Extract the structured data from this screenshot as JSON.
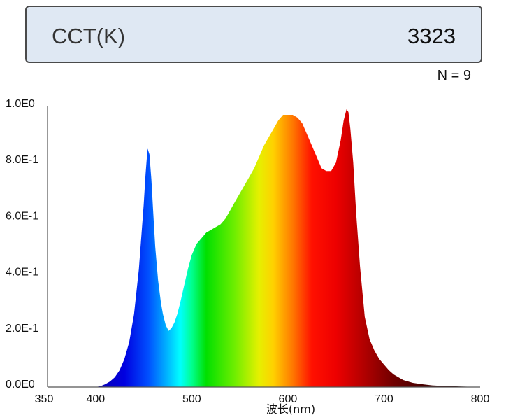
{
  "cct": {
    "label": "CCT(K)",
    "value": "3323"
  },
  "sample_count": "N = 9",
  "chart_data": {
    "type": "area",
    "title": "",
    "xlabel": "波长(nm)",
    "ylabel": "",
    "xlim": [
      350,
      800
    ],
    "ylim": [
      0,
      1
    ],
    "x_ticks": [
      "350",
      "400",
      "500",
      "600",
      "700",
      "800"
    ],
    "y_ticks": [
      "0.0E0",
      "2.0E-1",
      "4.0E-1",
      "6.0E-1",
      "8.0E-1",
      "1.0E0"
    ],
    "fill": "wavelength spectrum colors",
    "series": [
      {
        "x": [
          350,
          400,
          405,
          410,
          415,
          420,
          425,
          430,
          435,
          440,
          445,
          450,
          452,
          454,
          456,
          458,
          460,
          462,
          465,
          468,
          470,
          473,
          476,
          479,
          482,
          485,
          488,
          492,
          496,
          500,
          505,
          510,
          515,
          520,
          525,
          530,
          535,
          540,
          545,
          550,
          555,
          560,
          565,
          570,
          575,
          580,
          585,
          590,
          595,
          600,
          605,
          610,
          615,
          620,
          625,
          630,
          635,
          640,
          645,
          650,
          655,
          658,
          661,
          663,
          665,
          668,
          671,
          675,
          680,
          685,
          690,
          695,
          700,
          705,
          710,
          720,
          730,
          740,
          750,
          760,
          770,
          780,
          790,
          800
        ],
        "y": [
          0,
          0,
          0.003,
          0.01,
          0.02,
          0.035,
          0.06,
          0.1,
          0.16,
          0.26,
          0.42,
          0.65,
          0.76,
          0.85,
          0.83,
          0.74,
          0.62,
          0.5,
          0.38,
          0.3,
          0.26,
          0.22,
          0.2,
          0.21,
          0.23,
          0.26,
          0.3,
          0.36,
          0.42,
          0.47,
          0.51,
          0.53,
          0.55,
          0.56,
          0.57,
          0.58,
          0.6,
          0.63,
          0.66,
          0.69,
          0.72,
          0.75,
          0.78,
          0.82,
          0.86,
          0.89,
          0.92,
          0.95,
          0.97,
          0.97,
          0.97,
          0.96,
          0.94,
          0.9,
          0.86,
          0.82,
          0.78,
          0.77,
          0.77,
          0.8,
          0.88,
          0.95,
          0.99,
          0.98,
          0.92,
          0.8,
          0.62,
          0.43,
          0.25,
          0.17,
          0.13,
          0.1,
          0.08,
          0.06,
          0.045,
          0.025,
          0.015,
          0.01,
          0.006,
          0.004,
          0.003,
          0.002,
          0.001,
          0
        ]
      }
    ]
  }
}
